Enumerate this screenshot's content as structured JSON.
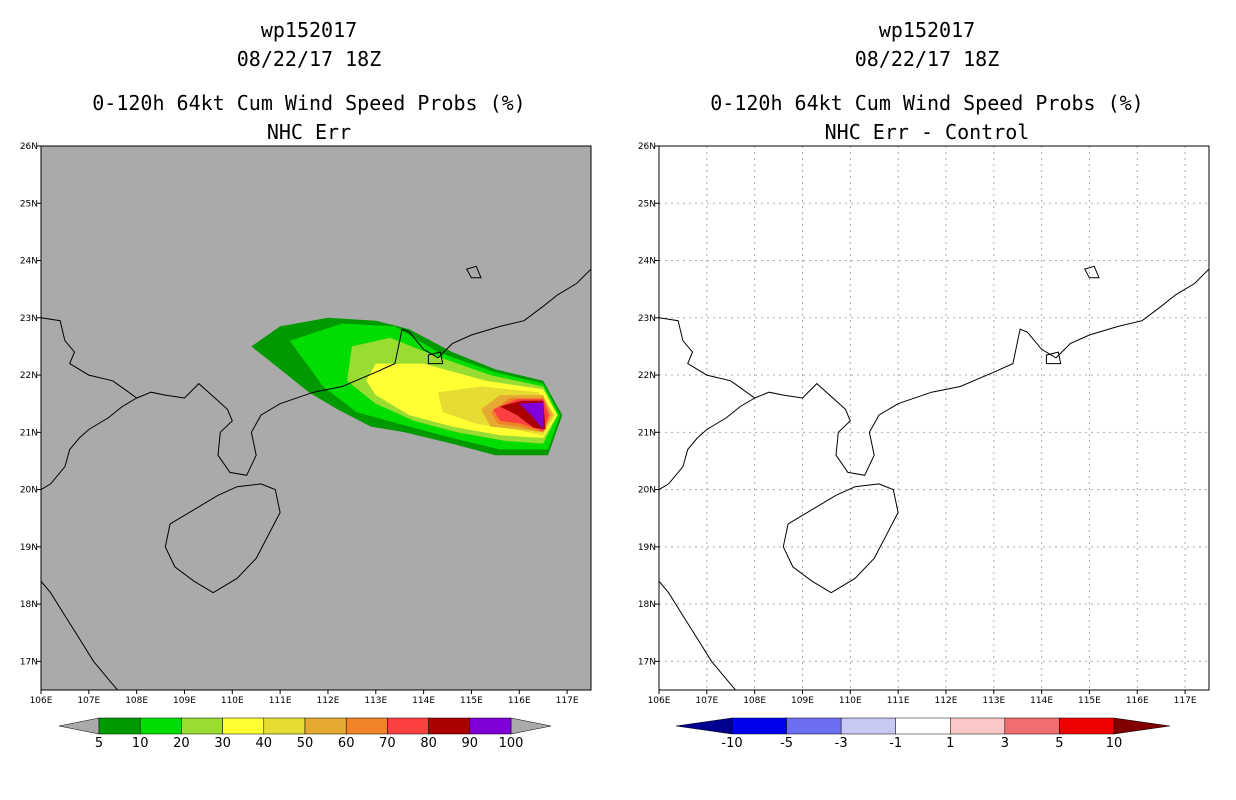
{
  "panels": [
    {
      "run": "wp152017",
      "date": "08/22/17 18Z",
      "product": "0-120h 64kt Cum Wind Speed Probs (%)",
      "subtitle": "NHC Err",
      "background": "#aaaaaa",
      "grid": false
    },
    {
      "run": "wp152017",
      "date": "08/22/17 18Z",
      "product": "0-120h 64kt Cum Wind Speed Probs (%)",
      "subtitle": "NHC Err - Control",
      "background": "#ffffff",
      "grid": true
    }
  ],
  "chart_data": [
    {
      "type": "heatmap",
      "title": "0-120h 64kt Cum Wind Speed Probs (%)",
      "subtitle": "NHC Err",
      "xlim": [
        106,
        117.5
      ],
      "ylim": [
        16.5,
        26
      ],
      "x_ticks": [
        106,
        107,
        108,
        109,
        110,
        111,
        112,
        113,
        114,
        115,
        116,
        117
      ],
      "x_tick_labels": [
        "106E",
        "107E",
        "108E",
        "109E",
        "110E",
        "111E",
        "112E",
        "113E",
        "114E",
        "115E",
        "116E",
        "117E"
      ],
      "y_ticks": [
        17,
        18,
        19,
        20,
        21,
        22,
        23,
        24,
        25,
        26
      ],
      "y_tick_labels": [
        "17N",
        "18N",
        "19N",
        "20N",
        "21N",
        "22N",
        "23N",
        "24N",
        "25N",
        "26N"
      ],
      "colorbar": {
        "labels": [
          "5",
          "10",
          "20",
          "30",
          "40",
          "50",
          "60",
          "70",
          "80",
          "90",
          "100"
        ],
        "colors": [
          "#009900",
          "#00dd00",
          "#99dd33",
          "#ffff33",
          "#e6dc32",
          "#e6aa32",
          "#f08228",
          "#fa4040",
          "#aa0000",
          "#8000d9"
        ],
        "under": "#aaaaaa",
        "over": "#aaaaaa"
      },
      "levels": [
        {
          "min": 5,
          "color": "#009900",
          "polygon": [
            [
              110.4,
              22.5
            ],
            [
              111,
              22.85
            ],
            [
              112,
              23.0
            ],
            [
              113,
              22.95
            ],
            [
              113.7,
              22.8
            ],
            [
              114.6,
              22.4
            ],
            [
              115.5,
              22.1
            ],
            [
              116.5,
              21.9
            ],
            [
              116.9,
              21.3
            ],
            [
              116.6,
              20.6
            ],
            [
              115.5,
              20.6
            ],
            [
              114.6,
              20.8
            ],
            [
              113.6,
              21.0
            ],
            [
              112.9,
              21.1
            ],
            [
              112.2,
              21.4
            ],
            [
              111.6,
              21.7
            ],
            [
              111,
              22.1
            ]
          ]
        },
        {
          "min": 10,
          "color": "#00dd00",
          "polygon": [
            [
              111.2,
              22.6
            ],
            [
              112.3,
              22.9
            ],
            [
              113.4,
              22.85
            ],
            [
              114.3,
              22.4
            ],
            [
              115.5,
              22.05
            ],
            [
              116.5,
              21.85
            ],
            [
              116.85,
              21.3
            ],
            [
              116.6,
              20.7
            ],
            [
              115.6,
              20.7
            ],
            [
              114.6,
              20.9
            ],
            [
              113.7,
              21.1
            ],
            [
              112.6,
              21.35
            ],
            [
              111.9,
              21.8
            ]
          ]
        },
        {
          "min": 20,
          "color": "#99dd33",
          "polygon": [
            [
              112.5,
              22.5
            ],
            [
              113.3,
              22.65
            ],
            [
              114.2,
              22.35
            ],
            [
              115.4,
              22.0
            ],
            [
              116.5,
              21.8
            ],
            [
              116.8,
              21.3
            ],
            [
              116.5,
              20.8
            ],
            [
              115.7,
              20.85
            ],
            [
              114.7,
              21.0
            ],
            [
              113.8,
              21.2
            ],
            [
              113.0,
              21.5
            ],
            [
              112.4,
              21.9
            ]
          ]
        },
        {
          "min": 30,
          "color": "#ffff33",
          "polygon": [
            [
              113.0,
              22.2
            ],
            [
              114.0,
              22.2
            ],
            [
              115.3,
              21.9
            ],
            [
              116.5,
              21.75
            ],
            [
              116.8,
              21.3
            ],
            [
              116.5,
              20.9
            ],
            [
              115.6,
              20.95
            ],
            [
              114.6,
              21.1
            ],
            [
              113.7,
              21.3
            ],
            [
              113.0,
              21.65
            ],
            [
              112.8,
              21.9
            ]
          ]
        },
        {
          "min": 40,
          "color": "#e6dc32",
          "polygon": [
            [
              114.3,
              21.7
            ],
            [
              115.2,
              21.8
            ],
            [
              116.4,
              21.7
            ],
            [
              116.75,
              21.3
            ],
            [
              116.5,
              20.95
            ],
            [
              115.9,
              21.05
            ],
            [
              115.1,
              21.15
            ],
            [
              114.4,
              21.35
            ]
          ]
        },
        {
          "min": 50,
          "color": "#e6aa32",
          "polygon": [
            [
              115.2,
              21.4
            ],
            [
              115.6,
              21.65
            ],
            [
              116.5,
              21.65
            ],
            [
              116.7,
              21.3
            ],
            [
              116.5,
              21.0
            ],
            [
              116.0,
              21.05
            ],
            [
              115.4,
              21.1
            ]
          ]
        },
        {
          "min": 60,
          "color": "#f08228",
          "polygon": [
            [
              115.4,
              21.35
            ],
            [
              115.8,
              21.6
            ],
            [
              116.5,
              21.6
            ],
            [
              116.65,
              21.3
            ],
            [
              116.5,
              21.0
            ],
            [
              116.0,
              21.1
            ],
            [
              115.55,
              21.15
            ]
          ]
        },
        {
          "min": 70,
          "color": "#fa4040",
          "polygon": [
            [
              115.45,
              21.4
            ],
            [
              115.95,
              21.58
            ],
            [
              116.5,
              21.58
            ],
            [
              116.62,
              21.3
            ],
            [
              116.5,
              21.02
            ],
            [
              116.05,
              21.15
            ],
            [
              115.6,
              21.2
            ]
          ]
        },
        {
          "min": 80,
          "color": "#aa0000",
          "polygon": [
            [
              115.6,
              21.45
            ],
            [
              116.05,
              21.55
            ],
            [
              116.5,
              21.55
            ],
            [
              116.55,
              21.05
            ],
            [
              116.3,
              21.08
            ],
            [
              115.95,
              21.3
            ]
          ]
        },
        {
          "min": 90,
          "color": "#8000d9",
          "polygon": [
            [
              116.0,
              21.5
            ],
            [
              116.5,
              21.52
            ],
            [
              116.5,
              21.05
            ],
            [
              116.25,
              21.3
            ]
          ]
        }
      ]
    },
    {
      "type": "heatmap",
      "title": "0-120h 64kt Cum Wind Speed Probs (%)",
      "subtitle": "NHC Err - Control",
      "xlim": [
        106,
        117.5
      ],
      "ylim": [
        16.5,
        26
      ],
      "x_ticks": [
        106,
        107,
        108,
        109,
        110,
        111,
        112,
        113,
        114,
        115,
        116,
        117
      ],
      "x_tick_labels": [
        "106E",
        "107E",
        "108E",
        "109E",
        "110E",
        "111E",
        "112E",
        "113E",
        "114E",
        "115E",
        "116E",
        "117E"
      ],
      "y_ticks": [
        17,
        18,
        19,
        20,
        21,
        22,
        23,
        24,
        25,
        26
      ],
      "y_tick_labels": [
        "17N",
        "18N",
        "19N",
        "20N",
        "21N",
        "22N",
        "23N",
        "24N",
        "25N",
        "26N"
      ],
      "colorbar": {
        "labels": [
          "-10",
          "-5",
          "-3",
          "-1",
          "1",
          "3",
          "5",
          "10"
        ],
        "colors": [
          "#0000f0",
          "#6e6ef0",
          "#c8c8f5",
          "#ffffff",
          "#fac8c8",
          "#f06e6e",
          "#f00000"
        ],
        "under": "#000090",
        "over": "#800000"
      },
      "levels": []
    }
  ],
  "geography": {
    "coast_south_china": [
      [
        106,
        23.0
      ],
      [
        106.4,
        22.95
      ],
      [
        106.5,
        22.6
      ],
      [
        106.7,
        22.4
      ],
      [
        106.6,
        22.2
      ],
      [
        107,
        22.0
      ],
      [
        107.5,
        21.9
      ],
      [
        108,
        21.6
      ],
      [
        108.3,
        21.7
      ],
      [
        108.6,
        21.65
      ],
      [
        109,
        21.6
      ],
      [
        109.3,
        21.85
      ],
      [
        109.7,
        21.55
      ],
      [
        109.9,
        21.4
      ],
      [
        110.0,
        21.2
      ],
      [
        109.75,
        21.0
      ],
      [
        109.7,
        20.6
      ],
      [
        109.95,
        20.3
      ],
      [
        110.3,
        20.25
      ],
      [
        110.5,
        20.6
      ],
      [
        110.4,
        21.0
      ],
      [
        110.6,
        21.3
      ],
      [
        111.0,
        21.5
      ],
      [
        111.7,
        21.7
      ],
      [
        112.3,
        21.8
      ],
      [
        113.0,
        22.05
      ],
      [
        113.4,
        22.2
      ],
      [
        113.55,
        22.8
      ],
      [
        113.7,
        22.75
      ],
      [
        114.0,
        22.45
      ],
      [
        114.3,
        22.3
      ],
      [
        114.6,
        22.55
      ],
      [
        115.0,
        22.7
      ],
      [
        115.6,
        22.85
      ],
      [
        116.1,
        22.95
      ],
      [
        116.5,
        23.2
      ],
      [
        116.8,
        23.4
      ],
      [
        117.2,
        23.6
      ],
      [
        117.5,
        23.85
      ]
    ],
    "coast_north_vietnam": [
      [
        106,
        20.0
      ],
      [
        106.2,
        20.1
      ],
      [
        106.5,
        20.4
      ],
      [
        106.6,
        20.7
      ],
      [
        106.8,
        20.9
      ],
      [
        107,
        21.05
      ],
      [
        107.4,
        21.25
      ],
      [
        107.7,
        21.45
      ],
      [
        108,
        21.6
      ]
    ],
    "coast_central_vietnam": [
      [
        106,
        18.4
      ],
      [
        106.2,
        18.2
      ],
      [
        106.5,
        17.8
      ],
      [
        106.8,
        17.4
      ],
      [
        107.1,
        17.0
      ],
      [
        107.5,
        16.6
      ],
      [
        107.7,
        16.4
      ]
    ],
    "hainan": [
      [
        108.7,
        19.4
      ],
      [
        108.6,
        19.0
      ],
      [
        108.8,
        18.65
      ],
      [
        109.2,
        18.4
      ],
      [
        109.6,
        18.2
      ],
      [
        110.1,
        18.45
      ],
      [
        110.5,
        18.8
      ],
      [
        111.0,
        19.6
      ],
      [
        110.9,
        20.0
      ],
      [
        110.6,
        20.1
      ],
      [
        110.1,
        20.05
      ],
      [
        109.7,
        19.9
      ],
      [
        109.3,
        19.7
      ]
    ],
    "islands": [
      [
        [
          114.9,
          23.85
        ],
        [
          115.1,
          23.9
        ],
        [
          115.2,
          23.7
        ],
        [
          115.0,
          23.7
        ]
      ],
      [
        [
          114.1,
          22.35
        ],
        [
          114.35,
          22.4
        ],
        [
          114.4,
          22.2
        ],
        [
          114.1,
          22.2
        ]
      ]
    ]
  }
}
